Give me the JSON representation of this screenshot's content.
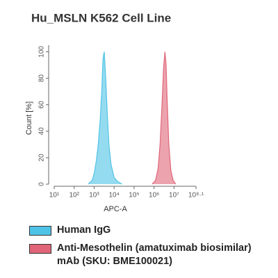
{
  "chart_data": {
    "type": "histogram-overlay",
    "title": "Hu_MSLN K562 Cell Line",
    "x_label": "APC-A",
    "y_label": "Count [%]",
    "xscale": "log",
    "grid": false,
    "xlim": [
      10,
      125892541
    ],
    "ylim": [
      0,
      105
    ],
    "xticks": [
      {
        "value": 10,
        "label": "10¹"
      },
      {
        "value": 100,
        "label": "10²"
      },
      {
        "value": 1000,
        "label": "10³"
      },
      {
        "value": 10000,
        "label": "10⁴"
      },
      {
        "value": 100000,
        "label": "10⁵"
      },
      {
        "value": 1000000,
        "label": "10⁶"
      },
      {
        "value": 10000000,
        "label": "10⁷"
      },
      {
        "value": 125892541,
        "label": "10⁸·¹"
      }
    ],
    "yticks": [
      0,
      20,
      40,
      60,
      80,
      100
    ],
    "series": [
      {
        "name": "Human IgG",
        "color": "#4fc3e6",
        "x": [
          500,
          800,
          1000,
          1300,
          1600,
          2000,
          2400,
          2800,
          3200,
          3800,
          4500,
          5500,
          7000,
          10000,
          15000,
          25000
        ],
        "values": [
          0,
          3,
          8,
          18,
          30,
          48,
          70,
          95,
          100,
          80,
          55,
          30,
          15,
          5,
          2,
          0
        ]
      },
      {
        "name": "Anti-Mesothelin (amatuximab biosimilar) mAb (SKU: BME100021)",
        "color": "#e06578",
        "x": [
          800000,
          1200000,
          1600000,
          2000000,
          2500000,
          3000000,
          3500000,
          4000000,
          4500000,
          5500000,
          7000000,
          9000000,
          12000000
        ],
        "values": [
          0,
          3,
          12,
          30,
          60,
          88,
          100,
          90,
          65,
          30,
          10,
          3,
          0
        ]
      }
    ]
  }
}
